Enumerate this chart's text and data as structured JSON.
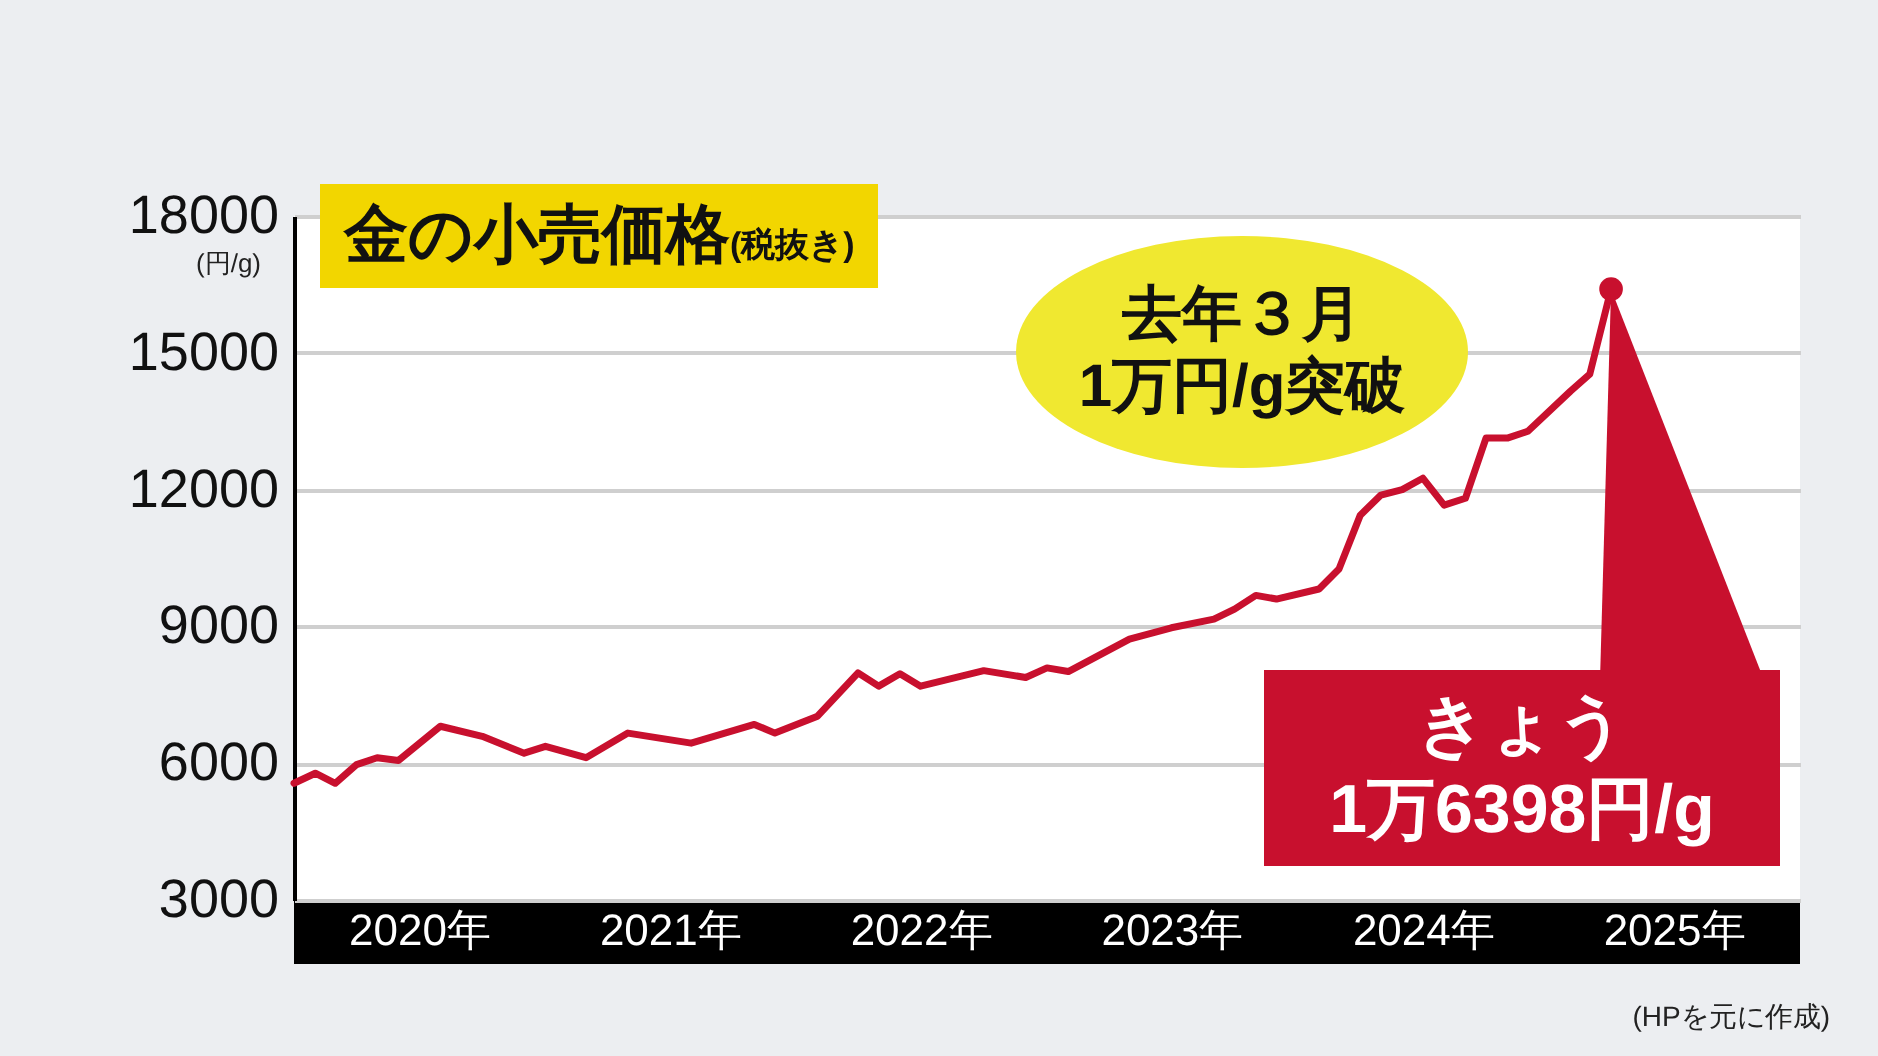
{
  "chart_data": {
    "type": "line",
    "title": "金の小売価格(税抜き)",
    "ylabel": "(円/g)",
    "series": [
      {
        "color": "#c8102e",
        "x": [
          "2020-01",
          "2020-02",
          "2020-03",
          "2020-04",
          "2020-05",
          "2020-06",
          "2020-08",
          "2020-10",
          "2020-12",
          "2021-01",
          "2021-03",
          "2021-05",
          "2021-08",
          "2021-11",
          "2021-12",
          "2022-02",
          "2022-04",
          "2022-05",
          "2022-06",
          "2022-07",
          "2022-10",
          "2022-12",
          "2023-01",
          "2023-02",
          "2023-05",
          "2023-07",
          "2023-09",
          "2023-10",
          "2023-11",
          "2023-12",
          "2024-02",
          "2024-03",
          "2024-04",
          "2024-05",
          "2024-06",
          "2024-07",
          "2024-08",
          "2024-09",
          "2024-10",
          "2024-11",
          "2024-12",
          "2025-02",
          "2025-03",
          "2025-04"
        ],
        "values": [
          5560,
          5780,
          5560,
          5970,
          6120,
          6060,
          6810,
          6590,
          6220,
          6370,
          6120,
          6660,
          6440,
          6850,
          6660,
          7030,
          7980,
          7690,
          7960,
          7690,
          8030,
          7880,
          8090,
          8010,
          8720,
          8970,
          9160,
          9380,
          9680,
          9600,
          9820,
          10260,
          11440,
          11880,
          12000,
          12250,
          11660,
          11810,
          13130,
          13130,
          13280,
          14160,
          14530,
          16398
        ]
      }
    ],
    "xlim": [
      "2020-01",
      "2026-01"
    ],
    "xticks": [
      {
        "value": "2020-07",
        "label": "2020年"
      },
      {
        "value": "2021-07",
        "label": "2021年"
      },
      {
        "value": "2022-07",
        "label": "2022年"
      },
      {
        "value": "2023-07",
        "label": "2023年"
      },
      {
        "value": "2024-07",
        "label": "2024年"
      },
      {
        "value": "2025-07",
        "label": "2025年"
      }
    ],
    "ylim": [
      3000,
      18000
    ],
    "yticks": [
      3000,
      6000,
      9000,
      12000,
      15000,
      18000
    ],
    "grid": "y",
    "line_style": "solid",
    "annotations": [
      "去年３月\n1万円/g突破",
      {
        "text": "きょう\n1万6398円/g",
        "x": "2025-04",
        "y": 16398
      },
      "(HPを元に作成)"
    ]
  }
}
